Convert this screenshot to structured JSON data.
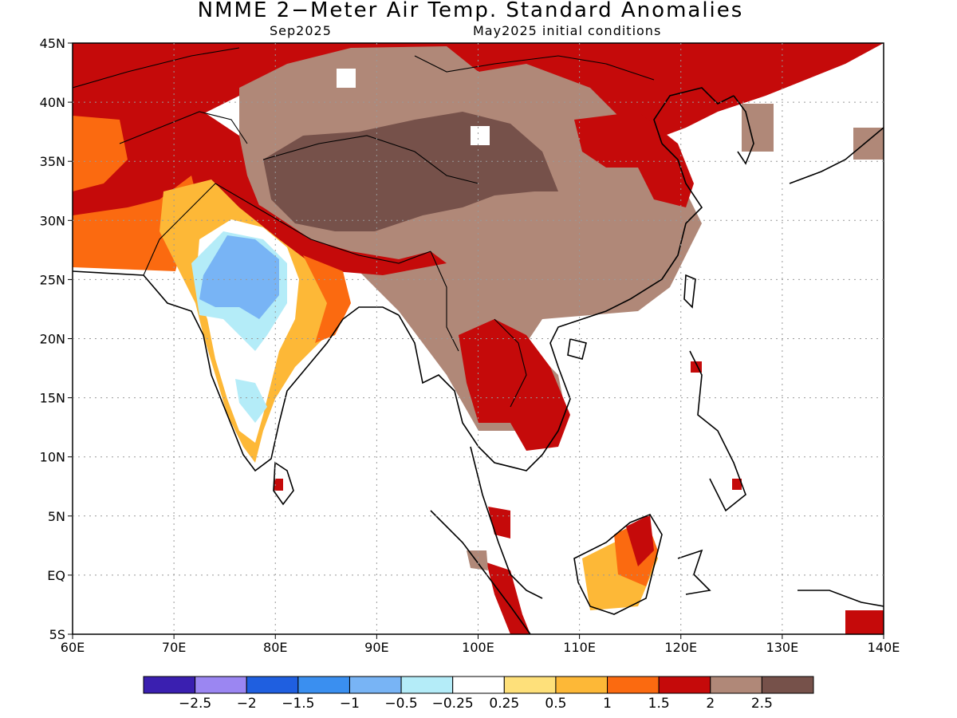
{
  "title": "NMME 2−Meter Air Temp. Standard Anomalies",
  "valid_month": "Sep2025",
  "initial_conditions": "May2025 initial conditions",
  "map": {
    "lon_range": [
      60,
      140
    ],
    "lat_range": [
      -5,
      45
    ],
    "x_ticks": [
      "60E",
      "70E",
      "80E",
      "90E",
      "100E",
      "110E",
      "120E",
      "130E",
      "140E"
    ],
    "y_ticks": [
      "45N",
      "40N",
      "35N",
      "30N",
      "25N",
      "20N",
      "15N",
      "10N",
      "5N",
      "EQ",
      "5S"
    ],
    "grid": true
  },
  "colorbar": {
    "colors": [
      "#3a1fb0",
      "#9b86f2",
      "#1f5fe0",
      "#3a8ff0",
      "#78b4f5",
      "#b4ecf8",
      "#ffffff",
      "#fee07a",
      "#fdb837",
      "#fb6a10",
      "#c50a0a",
      "#b08878",
      "#76514a"
    ],
    "labels": [
      "−2.5",
      "−2",
      "−1.5",
      "−1",
      "−0.5",
      "−0.25",
      "0.25",
      "0.5",
      "1",
      "1.5",
      "2",
      "2.5"
    ]
  }
}
